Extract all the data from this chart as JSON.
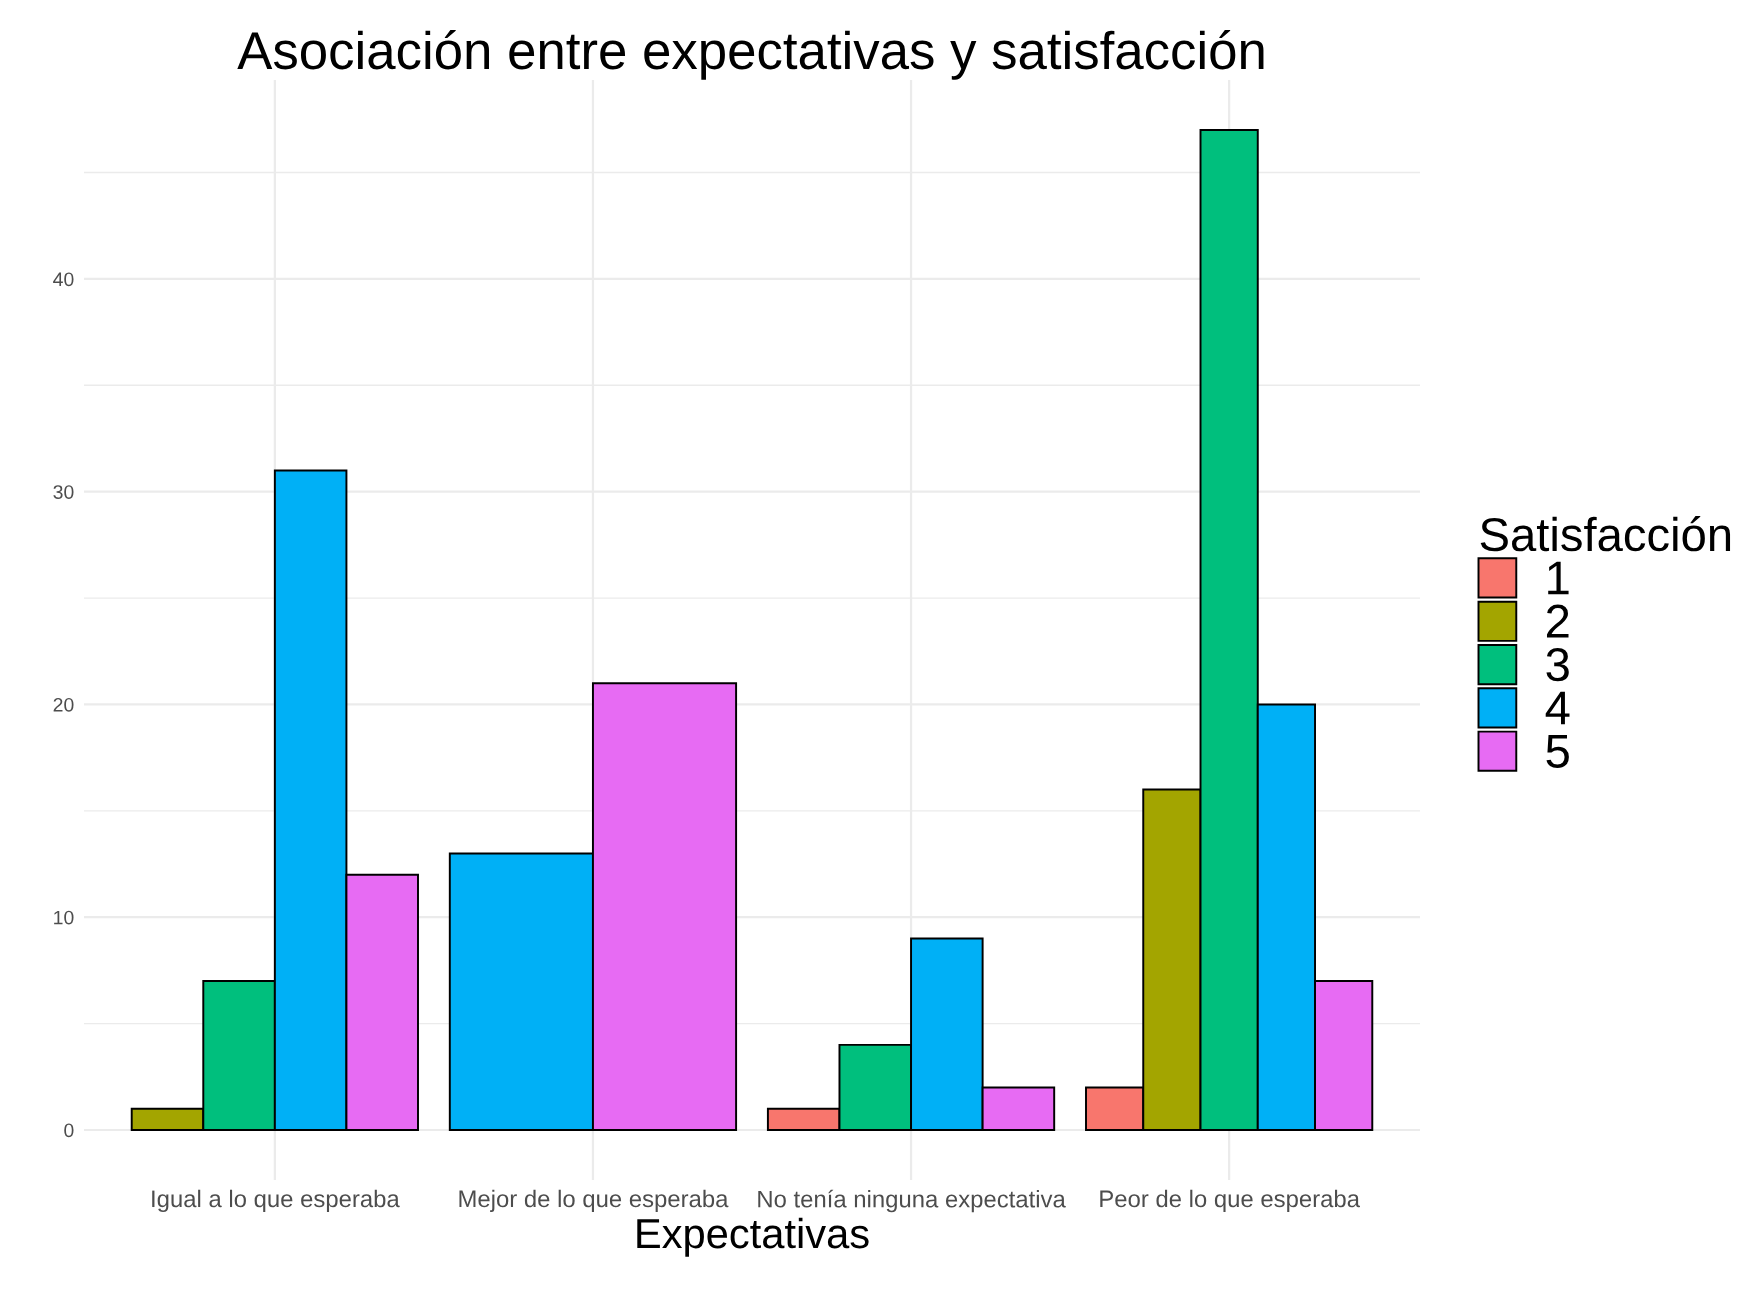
{
  "chart_data": {
    "type": "bar",
    "title": "Asociación entre expectativas y satisfacción",
    "xlabel": "Expectativas",
    "legend_title": "Satisfacción",
    "categories": [
      "Igual a lo que esperaba",
      "Mejor de lo que esperaba",
      "No tenía ninguna expectativa",
      "Peor de lo que esperaba"
    ],
    "series": [
      {
        "name": "1",
        "color": "#f8766d",
        "values": [
          null,
          null,
          1,
          2
        ]
      },
      {
        "name": "2",
        "color": "#a3a500",
        "values": [
          1,
          null,
          null,
          16
        ]
      },
      {
        "name": "3",
        "color": "#00bf7d",
        "values": [
          7,
          null,
          4,
          47
        ]
      },
      {
        "name": "4",
        "color": "#00b0f6",
        "values": [
          31,
          13,
          9,
          20
        ]
      },
      {
        "name": "5",
        "color": "#e76bf3",
        "values": [
          12,
          21,
          2,
          7
        ]
      }
    ],
    "ylim": [
      -2.35,
      49.35
    ],
    "yticks": [
      0,
      10,
      20,
      30,
      40
    ],
    "grid": true,
    "legend": "right"
  }
}
